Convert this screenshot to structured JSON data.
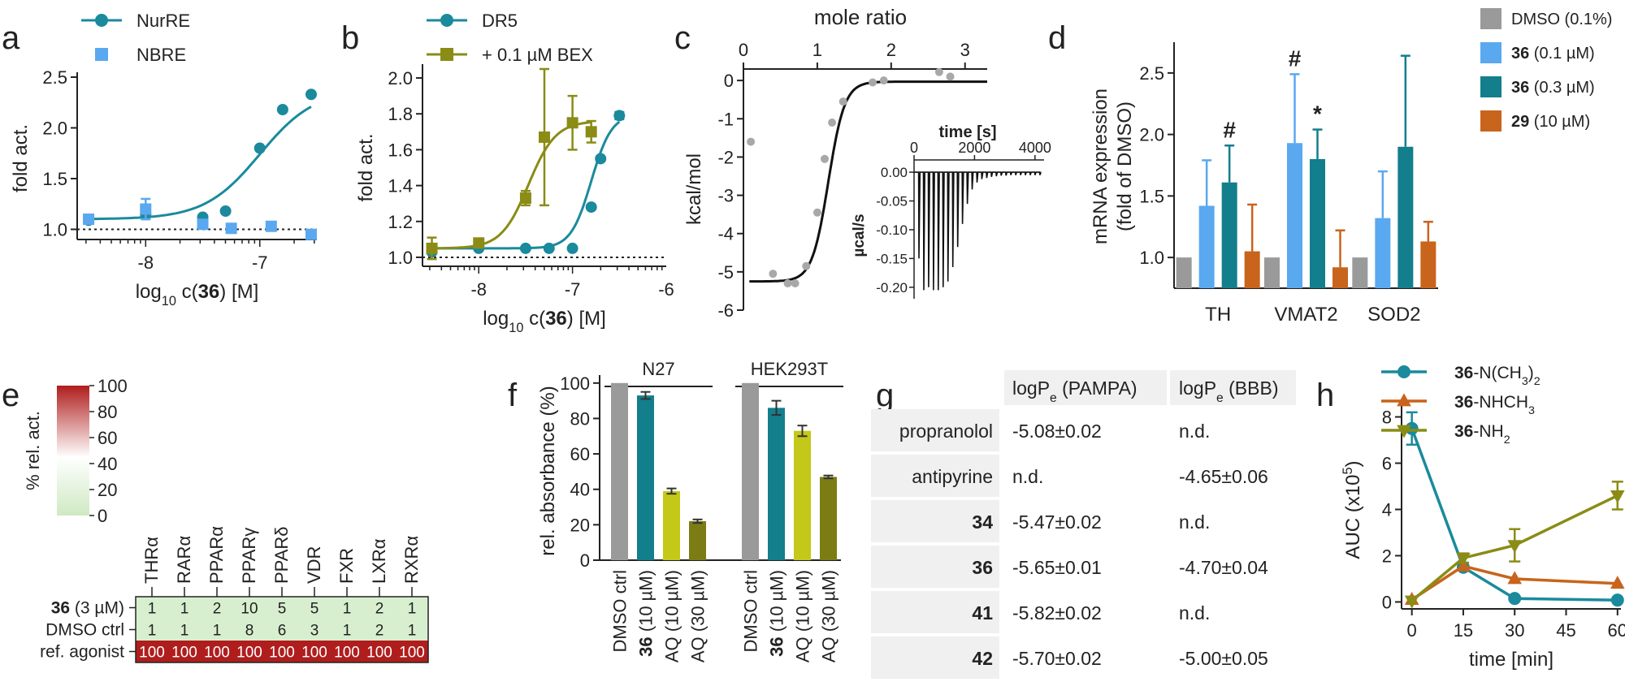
{
  "colors": {
    "teal": "#1a8a9c",
    "lightblue": "#5aa8f0",
    "darkteal": "#137e8c",
    "olive": "#8a8c16",
    "orange": "#c8641c",
    "gray": "#9a9a9a",
    "yellow": "#c4c818",
    "darkolive": "#7c7c14",
    "heatLow": "#d7efcf",
    "heatHigh": "#b01d1d",
    "tableBand": "#f0f0f0"
  },
  "chart_data": [
    {
      "id": "a",
      "type": "scatter",
      "panel_letter": "a",
      "ylabel": "fold act.",
      "xlabel_prefix": "log",
      "xlabel_sub": "10",
      "xlabel_mid": " c(",
      "xlabel_bold": "36",
      "xlabel_suffix": ") [M]",
      "xlim": [
        -8.6,
        -6.5
      ],
      "ylim": [
        0.9,
        2.5
      ],
      "xticks": [
        {
          "v": -8,
          "label": "-8"
        },
        {
          "v": -7,
          "label": "-7"
        }
      ],
      "yticks": [
        {
          "v": 1.0,
          "label": "1.0"
        },
        {
          "v": 1.5,
          "label": "1.5"
        },
        {
          "v": 2.0,
          "label": "2.0"
        },
        {
          "v": 2.5,
          "label": "2.5"
        }
      ],
      "baseline": 1.0,
      "series": [
        {
          "name": "NurRE",
          "color": "teal",
          "marker": "circle",
          "fit": {
            "bottom": 1.1,
            "top": 2.38,
            "ec50": -7.0,
            "hill": 1.8
          },
          "x": [
            -8.5,
            -8.0,
            -7.5,
            -7.3,
            -7.0,
            -6.8,
            -6.55
          ],
          "y": [
            1.09,
            1.15,
            1.12,
            1.18,
            1.8,
            2.18,
            2.33
          ],
          "err": [
            0,
            0.05,
            0,
            0,
            0,
            0,
            0
          ]
        },
        {
          "name": "NBRE",
          "color": "lightblue",
          "marker": "square",
          "x": [
            -8.5,
            -8.0,
            -7.5,
            -7.25,
            -6.9,
            -6.55
          ],
          "y": [
            1.1,
            1.2,
            1.05,
            1.01,
            1.03,
            0.95
          ],
          "err": [
            0.04,
            0.1,
            0.04,
            0,
            0,
            0
          ]
        }
      ]
    },
    {
      "id": "b",
      "type": "scatter",
      "panel_letter": "b",
      "ylabel": "fold act.",
      "xlabel_prefix": "log",
      "xlabel_sub": "10",
      "xlabel_mid": " c(",
      "xlabel_bold": "36",
      "xlabel_suffix": ") [M]",
      "xlim": [
        -8.6,
        -6.0
      ],
      "ylim": [
        0.95,
        2.05
      ],
      "xticks": [
        {
          "v": -8,
          "label": "-8"
        },
        {
          "v": -7,
          "label": "-7"
        },
        {
          "v": -6,
          "label": "-6"
        }
      ],
      "yticks": [
        {
          "v": 1.0,
          "label": "1.0"
        },
        {
          "v": 1.2,
          "label": "1.2"
        },
        {
          "v": 1.4,
          "label": "1.4"
        },
        {
          "v": 1.6,
          "label": "1.6"
        },
        {
          "v": 1.8,
          "label": "1.8"
        },
        {
          "v": 2.0,
          "label": "2.0"
        }
      ],
      "baseline": 1.0,
      "series": [
        {
          "name": "DR5",
          "color": "teal",
          "marker": "circle",
          "fit": {
            "bottom": 1.05,
            "top": 1.8,
            "ec50": -6.8,
            "hill": 4
          },
          "x": [
            -8.5,
            -8.0,
            -7.5,
            -7.25,
            -7.0,
            -6.8,
            -6.7,
            -6.5
          ],
          "y": [
            1.03,
            1.05,
            1.05,
            1.05,
            1.05,
            1.28,
            1.55,
            1.79
          ],
          "err": [
            0,
            0,
            0,
            0,
            0,
            0,
            0,
            0.02
          ]
        },
        {
          "name": "+ 0.1 µM BEX",
          "color": "olive",
          "marker": "square",
          "fit": {
            "bottom": 1.05,
            "top": 1.76,
            "ec50": -7.47,
            "hill": 3
          },
          "x": [
            -8.5,
            -8.0,
            -7.5,
            -7.3,
            -7.0,
            -6.8
          ],
          "y": [
            1.05,
            1.08,
            1.33,
            1.67,
            1.75,
            1.7
          ],
          "err": [
            0.06,
            0,
            0.04,
            0.38,
            0.15,
            0.06
          ]
        }
      ]
    },
    {
      "id": "c",
      "type": "scatter",
      "panel_letter": "c",
      "title_top": "mole ratio",
      "ylabel": "kcal/mol",
      "xlim": [
        0,
        3.3
      ],
      "ylim": [
        -6,
        0.3
      ],
      "xticks": [
        {
          "v": 0,
          "label": "0"
        },
        {
          "v": 1,
          "label": "1"
        },
        {
          "v": 2,
          "label": "2"
        },
        {
          "v": 3,
          "label": "3"
        }
      ],
      "yticks": [
        {
          "v": 0,
          "label": "0"
        },
        {
          "v": -1,
          "label": "-1"
        },
        {
          "v": -2,
          "label": "-2"
        },
        {
          "v": -3,
          "label": "-3"
        },
        {
          "v": -4,
          "label": "-4"
        },
        {
          "v": -5,
          "label": "-5"
        },
        {
          "v": -6,
          "label": "-6"
        }
      ],
      "fit": {
        "bottom": -5.25,
        "top": -0.03,
        "mid": 1.15,
        "width": 0.11
      },
      "points_x": [
        0.1,
        0.4,
        0.6,
        0.7,
        0.85,
        1.0,
        1.1,
        1.2,
        1.35,
        1.75,
        1.9,
        2.65,
        2.8
      ],
      "points_y": [
        -1.6,
        -5.05,
        -5.3,
        -5.3,
        -4.85,
        -3.45,
        -2.05,
        -1.1,
        -0.55,
        -0.05,
        0.0,
        0.22,
        0.1
      ],
      "inset": {
        "xlabel": "time [s]",
        "ylabel": "µcal/s",
        "xlim": [
          0,
          4300
        ],
        "ylim": [
          -0.22,
          0.01
        ],
        "xticks": [
          {
            "v": 0,
            "label": "0"
          },
          {
            "v": 2000,
            "label": "2000"
          },
          {
            "v": 4000,
            "label": "4000"
          }
        ],
        "yticks": [
          {
            "v": 0,
            "label": "0.00"
          },
          {
            "v": -0.05,
            "label": "-0.05"
          },
          {
            "v": -0.1,
            "label": "-0.10"
          },
          {
            "v": -0.15,
            "label": "-0.15"
          },
          {
            "v": -0.2,
            "label": "-0.20"
          }
        ],
        "peaks": [
          -0.15,
          -0.205,
          -0.2,
          -0.205,
          -0.205,
          -0.2,
          -0.19,
          -0.165,
          -0.13,
          -0.09,
          -0.055,
          -0.03,
          -0.018,
          -0.012,
          -0.01,
          -0.008,
          -0.007,
          -0.006,
          -0.006,
          -0.005,
          -0.005,
          -0.005,
          -0.005,
          -0.005,
          -0.005,
          -0.005
        ]
      }
    },
    {
      "id": "d",
      "type": "bar",
      "panel_letter": "d",
      "ylabel1": "mRNA expression",
      "ylabel2": "(fold of DMSO)",
      "categories": [
        "TH",
        "VMAT2",
        "SOD2"
      ],
      "ylim": [
        0.75,
        2.75
      ],
      "yticks": [
        {
          "v": 1.0,
          "label": "1.0"
        },
        {
          "v": 1.5,
          "label": "1.5"
        },
        {
          "v": 2.0,
          "label": "2.0"
        },
        {
          "v": 2.5,
          "label": "2.5"
        }
      ],
      "series": [
        {
          "name": "DMSO (0.1%)",
          "bold": "",
          "rest": "DMSO (0.1%)",
          "color": "gray",
          "values": [
            1.0,
            1.0,
            1.0
          ],
          "err": [
            0,
            0,
            0
          ]
        },
        {
          "name": "36 (0.1 µM)",
          "bold": "36",
          "rest": " (0.1 µM)",
          "color": "lightblue",
          "values": [
            1.42,
            1.93,
            1.32
          ],
          "err": [
            0.37,
            0.56,
            0.38
          ]
        },
        {
          "name": "36 (0.3 µM)",
          "bold": "36",
          "rest": " (0.3 µM)",
          "color": "darkteal",
          "values": [
            1.61,
            1.8,
            1.9
          ],
          "err": [
            0.3,
            0.24,
            0.74
          ]
        },
        {
          "name": "29 (10 µM)",
          "bold": "29",
          "rest": " (10 µM)",
          "color": "orange",
          "values": [
            1.05,
            0.92,
            1.13
          ],
          "err": [
            0.38,
            0.3,
            0.16
          ]
        }
      ],
      "annotations": [
        {
          "category": 0,
          "series": 2,
          "text": "#"
        },
        {
          "category": 1,
          "series": 1,
          "text": "#"
        },
        {
          "category": 1,
          "series": 2,
          "text": "*"
        }
      ]
    },
    {
      "id": "e",
      "type": "heatmap",
      "panel_letter": "e",
      "colorbar_label": "% rel. act.",
      "colorbar_ticks": [
        "0",
        "20",
        "40",
        "60",
        "80",
        "100"
      ],
      "columns": [
        "THRα",
        "RARα",
        "PPARα",
        "PPARγ",
        "PPARδ",
        "VDR",
        "FXR",
        "LXRα",
        "RXRα"
      ],
      "rows": [
        {
          "bold": "36",
          "label": " (3 µM)",
          "values": [
            1,
            1,
            2,
            10,
            5,
            5,
            1,
            2,
            1
          ]
        },
        {
          "bold": "",
          "label": "DMSO ctrl",
          "values": [
            1,
            1,
            1,
            8,
            6,
            3,
            1,
            2,
            1
          ]
        },
        {
          "bold": "",
          "label": "ref. agonist",
          "values": [
            100,
            100,
            100,
            100,
            100,
            100,
            100,
            100,
            100
          ]
        }
      ]
    },
    {
      "id": "f",
      "type": "bar",
      "panel_letter": "f",
      "ylabel": "rel. absorbance (%)",
      "groups": [
        "N27",
        "HEK293T"
      ],
      "categories": [
        {
          "bold": "",
          "rest": "DMSO ctrl"
        },
        {
          "bold": "36",
          "rest": " (10 µM)"
        },
        {
          "bold": "",
          "rest": "AQ (10 µM)"
        },
        {
          "bold": "",
          "rest": "AQ (30 µM)"
        }
      ],
      "ylim": [
        0,
        110
      ],
      "yticks": [
        {
          "v": 0,
          "label": "0"
        },
        {
          "v": 20,
          "label": "20"
        },
        {
          "v": 40,
          "label": "40"
        },
        {
          "v": 60,
          "label": "60"
        },
        {
          "v": 80,
          "label": "80"
        },
        {
          "v": 100,
          "label": "100"
        }
      ],
      "bar_colors": [
        "gray",
        "darkteal",
        "yellow",
        "darkolive"
      ],
      "values": [
        [
          100,
          93,
          39,
          22
        ],
        [
          100,
          86,
          73,
          47
        ]
      ],
      "err": [
        [
          0,
          2,
          1.5,
          1
        ],
        [
          0,
          4,
          3,
          0.8
        ]
      ]
    },
    {
      "id": "g",
      "type": "table",
      "panel_letter": "g",
      "headers": [
        {
          "pre": "logP",
          "sub": "e",
          "post": " (PAMPA)"
        },
        {
          "pre": "logP",
          "sub": "e",
          "post": " (BBB)"
        }
      ],
      "rows": [
        {
          "name": "propranolol",
          "bold": false,
          "pampa": "-5.08±0.02",
          "bbb": "n.d."
        },
        {
          "name": "antipyrine",
          "bold": false,
          "pampa": "n.d.",
          "bbb": "-4.65±0.06"
        },
        {
          "name": "34",
          "bold": true,
          "pampa": "-5.47±0.02",
          "bbb": "n.d."
        },
        {
          "name": "36",
          "bold": true,
          "pampa": "-5.65±0.01",
          "bbb": "-4.70±0.04"
        },
        {
          "name": "41",
          "bold": true,
          "pampa": "-5.82±0.02",
          "bbb": "n.d."
        },
        {
          "name": "42",
          "bold": true,
          "pampa": "-5.70±0.02",
          "bbb": "-5.00±0.05"
        }
      ]
    },
    {
      "id": "h",
      "type": "line",
      "panel_letter": "h",
      "xlabel": "time [min]",
      "ylabel_pre": "AUC (x10",
      "ylabel_sup": "5",
      "ylabel_post": ")",
      "x": [
        0,
        15,
        30,
        60
      ],
      "xlim": [
        -3,
        61
      ],
      "ylim": [
        -0.3,
        8.3
      ],
      "xticks": [
        {
          "v": 0,
          "label": "0"
        },
        {
          "v": 15,
          "label": "15"
        },
        {
          "v": 30,
          "label": "30"
        },
        {
          "v": 45,
          "label": "45"
        },
        {
          "v": 60,
          "label": "60"
        }
      ],
      "yticks": [
        {
          "v": 0,
          "label": "0"
        },
        {
          "v": 2,
          "label": "2"
        },
        {
          "v": 4,
          "label": "4"
        },
        {
          "v": 6,
          "label": "6"
        },
        {
          "v": 8,
          "label": "8"
        }
      ],
      "series": [
        {
          "bold": "36",
          "label": "-N(CH",
          "sub": "3",
          "post": ")",
          "sub2": "2",
          "color": "teal",
          "marker": "circle",
          "values": [
            7.5,
            1.5,
            0.15,
            0.08
          ],
          "err": [
            0.7,
            0,
            0,
            0
          ]
        },
        {
          "bold": "36",
          "label": "-NHCH",
          "sub": "3",
          "post": "",
          "sub2": "",
          "color": "orange",
          "marker": "triangle-up",
          "values": [
            0.1,
            1.55,
            1.0,
            0.8
          ],
          "err": [
            0,
            0,
            0,
            0
          ]
        },
        {
          "bold": "36",
          "label": "-NH",
          "sub": "2",
          "post": "",
          "sub2": "",
          "color": "olive",
          "marker": "triangle-down",
          "values": [
            0.05,
            1.9,
            2.45,
            4.6
          ],
          "err": [
            0,
            0.2,
            0.7,
            0.6
          ]
        }
      ]
    }
  ]
}
